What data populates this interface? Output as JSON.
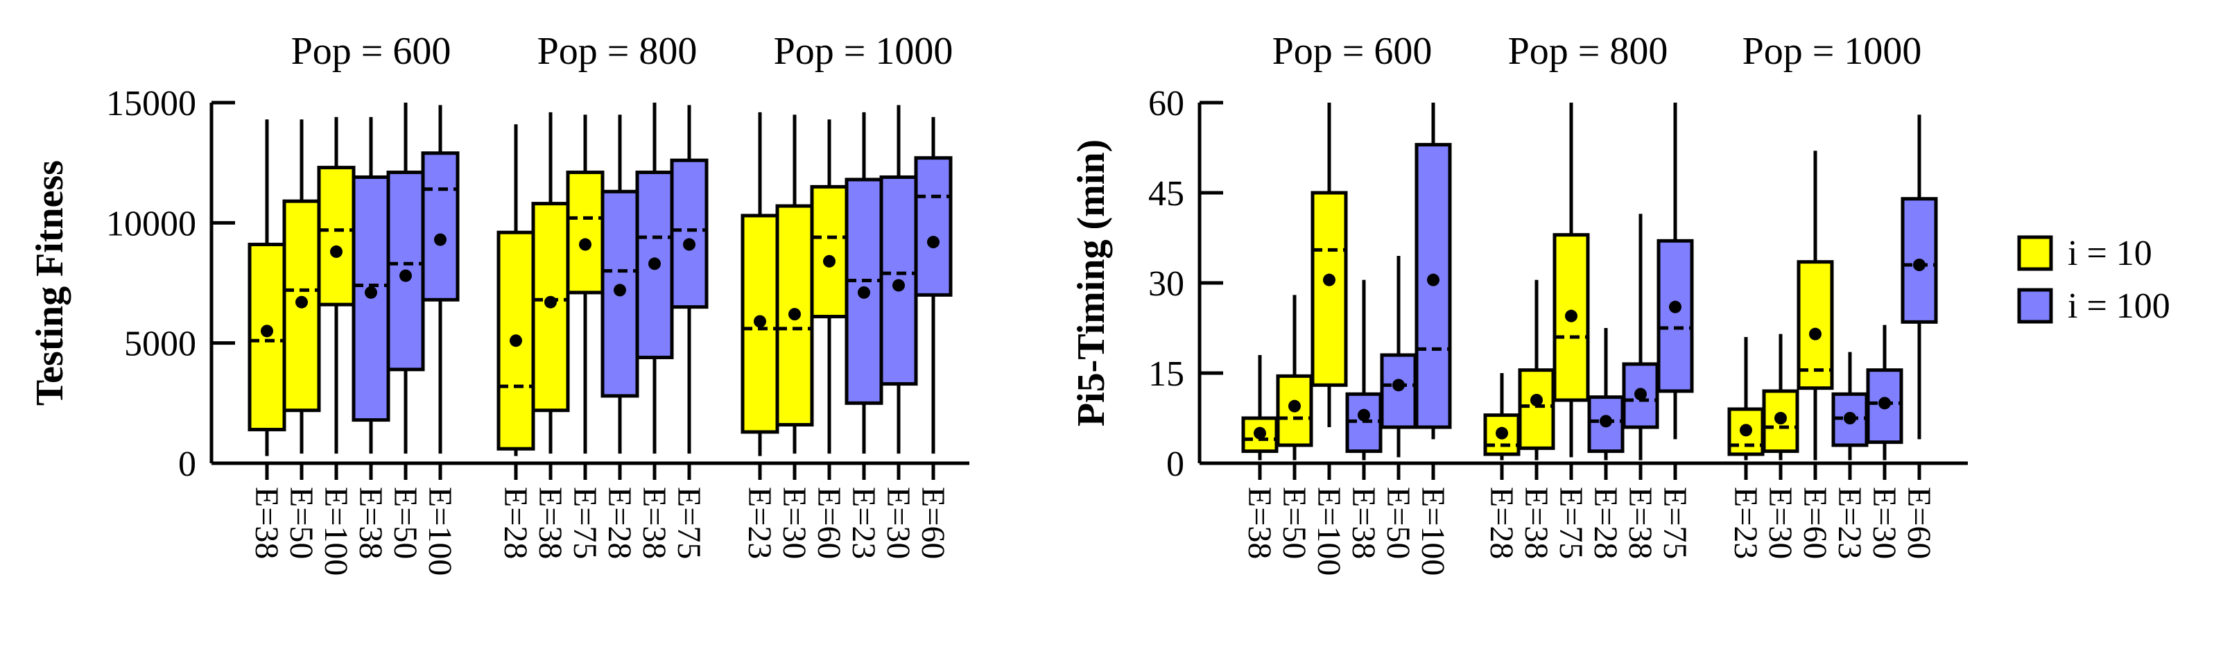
{
  "colors": {
    "i10": "#ffff00",
    "i100": "#8080ff",
    "stroke": "#000000"
  },
  "legend": [
    {
      "label": "i = 10",
      "color_key": "i10"
    },
    {
      "label": "i = 100",
      "color_key": "i100"
    }
  ],
  "chart_data": [
    {
      "type": "boxplot",
      "ylabel": "Testing Fitness",
      "ylim": [
        0,
        15000
      ],
      "yticks": [
        "0",
        "5000",
        "10000",
        "15000"
      ],
      "yvalues": [
        0,
        5000,
        10000,
        15000
      ],
      "groups": [
        {
          "title": "Pop = 600",
          "boxes": [
            {
              "label": "E=38",
              "series": "i10",
              "min": 300,
              "q1": 1400,
              "median": 5100,
              "mean": 5500,
              "q3": 9100,
              "max": 14300
            },
            {
              "label": "E=50",
              "series": "i10",
              "min": 400,
              "q1": 2200,
              "median": 7200,
              "mean": 6700,
              "q3": 10900,
              "max": 14300
            },
            {
              "label": "E=100",
              "series": "i10",
              "min": 400,
              "q1": 6600,
              "median": 9700,
              "mean": 8800,
              "q3": 12300,
              "max": 14400
            },
            {
              "label": "E=38",
              "series": "i100",
              "min": 400,
              "q1": 1800,
              "median": 7400,
              "mean": 7100,
              "q3": 11900,
              "max": 14400
            },
            {
              "label": "E=50",
              "series": "i100",
              "min": 400,
              "q1": 3900,
              "median": 8300,
              "mean": 7800,
              "q3": 12100,
              "max": 15000
            },
            {
              "label": "E=100",
              "series": "i100",
              "min": 400,
              "q1": 6800,
              "median": 11400,
              "mean": 9300,
              "q3": 12900,
              "max": 14900
            }
          ]
        },
        {
          "title": "Pop = 800",
          "boxes": [
            {
              "label": "E=28",
              "series": "i10",
              "min": 300,
              "q1": 600,
              "median": 3200,
              "mean": 5100,
              "q3": 9600,
              "max": 14100
            },
            {
              "label": "E=38",
              "series": "i10",
              "min": 400,
              "q1": 2200,
              "median": 6800,
              "mean": 6700,
              "q3": 10800,
              "max": 14600
            },
            {
              "label": "E=75",
              "series": "i10",
              "min": 400,
              "q1": 7100,
              "median": 10200,
              "mean": 9100,
              "q3": 12100,
              "max": 14500
            },
            {
              "label": "E=28",
              "series": "i100",
              "min": 400,
              "q1": 2800,
              "median": 8000,
              "mean": 7200,
              "q3": 11300,
              "max": 14500
            },
            {
              "label": "E=38",
              "series": "i100",
              "min": 400,
              "q1": 4400,
              "median": 9400,
              "mean": 8300,
              "q3": 12100,
              "max": 15000
            },
            {
              "label": "E=75",
              "series": "i100",
              "min": 400,
              "q1": 6500,
              "median": 9700,
              "mean": 9100,
              "q3": 12600,
              "max": 14900
            }
          ]
        },
        {
          "title": "Pop = 1000",
          "boxes": [
            {
              "label": "E=23",
              "series": "i10",
              "min": 300,
              "q1": 1300,
              "median": 5600,
              "mean": 5900,
              "q3": 10300,
              "max": 14600
            },
            {
              "label": "E=30",
              "series": "i10",
              "min": 400,
              "q1": 1600,
              "median": 5600,
              "mean": 6200,
              "q3": 10700,
              "max": 14500
            },
            {
              "label": "E=60",
              "series": "i10",
              "min": 400,
              "q1": 6100,
              "median": 9400,
              "mean": 8400,
              "q3": 11500,
              "max": 14300
            },
            {
              "label": "E=23",
              "series": "i100",
              "min": 400,
              "q1": 2500,
              "median": 7600,
              "mean": 7100,
              "q3": 11800,
              "max": 14600
            },
            {
              "label": "E=30",
              "series": "i100",
              "min": 400,
              "q1": 3300,
              "median": 7900,
              "mean": 7400,
              "q3": 11900,
              "max": 14900
            },
            {
              "label": "E=60",
              "series": "i100",
              "min": 400,
              "q1": 7000,
              "median": 11100,
              "mean": 9200,
              "q3": 12700,
              "max": 14400
            }
          ]
        }
      ]
    },
    {
      "type": "boxplot",
      "ylabel": "Pi5-Timing (min)",
      "ylim": [
        0,
        60
      ],
      "yticks": [
        "0",
        "15",
        "30",
        "45",
        "60"
      ],
      "yvalues": [
        0,
        15,
        30,
        45,
        60
      ],
      "groups": [
        {
          "title": "Pop = 600",
          "boxes": [
            {
              "label": "E=38",
              "series": "i10",
              "min": 0.5,
              "q1": 2,
              "median": 4,
              "mean": 5,
              "q3": 7.5,
              "max": 18
            },
            {
              "label": "E=50",
              "series": "i10",
              "min": 0.5,
              "q1": 3,
              "median": 7.5,
              "mean": 9.5,
              "q3": 14.5,
              "max": 28
            },
            {
              "label": "E=100",
              "series": "i10",
              "min": 6,
              "q1": 13,
              "median": 35.5,
              "mean": 30.5,
              "q3": 45,
              "max": 60
            },
            {
              "label": "E=38",
              "series": "i100",
              "min": 0.5,
              "q1": 2,
              "median": 7,
              "mean": 8,
              "q3": 11.5,
              "max": 30.5
            },
            {
              "label": "E=50",
              "series": "i100",
              "min": 1,
              "q1": 6,
              "median": 13,
              "mean": 13,
              "q3": 18,
              "max": 34.5
            },
            {
              "label": "E=100",
              "series": "i100",
              "min": 4,
              "q1": 6,
              "median": 19,
              "mean": 30.5,
              "q3": 53,
              "max": 60
            }
          ]
        },
        {
          "title": "Pop = 800",
          "boxes": [
            {
              "label": "E=28",
              "series": "i10",
              "min": 0.5,
              "q1": 1.5,
              "median": 3,
              "mean": 5,
              "q3": 8,
              "max": 15
            },
            {
              "label": "E=38",
              "series": "i10",
              "min": 0.5,
              "q1": 2.5,
              "median": 9.5,
              "mean": 10.5,
              "q3": 15.5,
              "max": 30.5
            },
            {
              "label": "E=75",
              "series": "i10",
              "min": 1,
              "q1": 10.5,
              "median": 21,
              "mean": 24.5,
              "q3": 38,
              "max": 60
            },
            {
              "label": "E=28",
              "series": "i100",
              "min": 0.5,
              "q1": 2,
              "median": 7,
              "mean": 7,
              "q3": 11,
              "max": 22.5
            },
            {
              "label": "E=38",
              "series": "i100",
              "min": 0.5,
              "q1": 6,
              "median": 10.5,
              "mean": 11.5,
              "q3": 16.5,
              "max": 41.5
            },
            {
              "label": "E=75",
              "series": "i100",
              "min": 4,
              "q1": 12,
              "median": 22.5,
              "mean": 26,
              "q3": 37,
              "max": 60
            }
          ]
        },
        {
          "title": "Pop = 1000",
          "boxes": [
            {
              "label": "E=23",
              "series": "i10",
              "min": 0.5,
              "q1": 1.5,
              "median": 3,
              "mean": 5.5,
              "q3": 9,
              "max": 21
            },
            {
              "label": "E=30",
              "series": "i10",
              "min": 0.5,
              "q1": 2,
              "median": 6,
              "mean": 7.5,
              "q3": 12,
              "max": 21.5
            },
            {
              "label": "E=60",
              "series": "i10",
              "min": 0.5,
              "q1": 12.5,
              "median": 15.5,
              "mean": 21.5,
              "q3": 33.5,
              "max": 52
            },
            {
              "label": "E=23",
              "series": "i100",
              "min": 0.5,
              "q1": 3,
              "median": 7.5,
              "mean": 7.5,
              "q3": 11.5,
              "max": 18.5
            },
            {
              "label": "E=30",
              "series": "i100",
              "min": 0.5,
              "q1": 3.5,
              "median": 10,
              "mean": 10,
              "q3": 15.5,
              "max": 23
            },
            {
              "label": "E=60",
              "series": "i100",
              "min": 4,
              "q1": 23.5,
              "median": 33,
              "mean": 33,
              "q3": 44,
              "max": 58
            }
          ]
        }
      ]
    }
  ]
}
